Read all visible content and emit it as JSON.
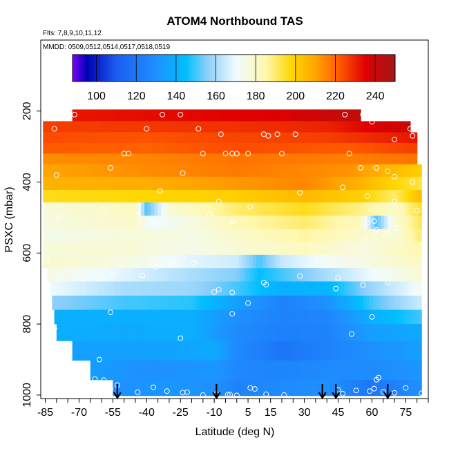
{
  "chart_data": {
    "type": "heatmap",
    "title": "ATOM4 Northbound TAS",
    "subtitle_flights": "Flts: 7,8,9,10,11,12",
    "subtitle_dates": "MMDD: 0509,0512,0514,0517,0518,0519",
    "xlabel": "Latitude (deg N)",
    "ylabel": "PSXC (mbar)",
    "xlim": [
      -87,
      85
    ],
    "ylim": [
      1010,
      0
    ],
    "x_tick_labels": [
      "-85",
      "-70",
      "-55",
      "-40",
      "-25",
      "-10",
      "5",
      "15",
      "30",
      "45",
      "60",
      "75"
    ],
    "x_tick_values": [
      -85,
      -70,
      -55,
      -40,
      -25,
      -10,
      5,
      15,
      30,
      45,
      60,
      75
    ],
    "y_tick_labels": [
      "200",
      "400",
      "600",
      "800",
      "1000"
    ],
    "y_tick_values": [
      200,
      400,
      600,
      800,
      1000
    ],
    "colorbar": {
      "range": [
        88,
        250
      ],
      "tick_labels": [
        "100",
        "120",
        "140",
        "160",
        "180",
        "200",
        "220",
        "240"
      ],
      "tick_values": [
        100,
        120,
        140,
        160,
        180,
        200,
        220,
        240
      ],
      "colors": [
        "#7f00ff",
        "#0000b3",
        "#1c5cf0",
        "#1e90ff",
        "#00bfff",
        "#87cefa",
        "#f0fbff",
        "#fff8b0",
        "#ffd700",
        "#ffa500",
        "#ff5a00",
        "#e00000",
        "#a01818"
      ],
      "color_stops": [
        88,
        95,
        110,
        130,
        145,
        155,
        170,
        185,
        198,
        210,
        222,
        235,
        250
      ]
    },
    "layers": [
      {
        "p": 212,
        "lat_min": -73,
        "lat_max": 55,
        "v": [
          [
            -73,
            232
          ],
          [
            -20,
            234
          ],
          [
            20,
            236
          ],
          [
            55,
            243
          ]
        ]
      },
      {
        "p": 245,
        "lat_min": -86,
        "lat_max": 77,
        "v": [
          [
            -86,
            226
          ],
          [
            -40,
            227
          ],
          [
            0,
            228
          ],
          [
            40,
            230
          ],
          [
            77,
            240
          ]
        ]
      },
      {
        "p": 275,
        "lat_min": -86,
        "lat_max": 80,
        "v": [
          [
            -86,
            224
          ],
          [
            -40,
            223
          ],
          [
            0,
            225
          ],
          [
            40,
            226
          ],
          [
            80,
            232
          ]
        ]
      },
      {
        "p": 305,
        "lat_min": -86,
        "lat_max": 80,
        "v": [
          [
            -86,
            222
          ],
          [
            -40,
            221
          ],
          [
            0,
            224
          ],
          [
            50,
            222
          ],
          [
            80,
            226
          ]
        ]
      },
      {
        "p": 335,
        "lat_min": -86,
        "lat_max": 80,
        "v": [
          [
            -86,
            214
          ],
          [
            -40,
            215
          ],
          [
            0,
            218
          ],
          [
            50,
            216
          ],
          [
            80,
            218
          ]
        ]
      },
      {
        "p": 365,
        "lat_min": -86,
        "lat_max": 82,
        "v": [
          [
            -86,
            210
          ],
          [
            -40,
            214
          ],
          [
            0,
            217
          ],
          [
            50,
            213
          ],
          [
            70,
            205
          ],
          [
            82,
            200
          ]
        ]
      },
      {
        "p": 405,
        "lat_min": -86,
        "lat_max": 82,
        "v": [
          [
            -86,
            207
          ],
          [
            -40,
            208
          ],
          [
            0,
            212
          ],
          [
            30,
            215
          ],
          [
            55,
            207
          ],
          [
            70,
            198
          ],
          [
            82,
            193
          ]
        ]
      },
      {
        "p": 440,
        "lat_min": -86,
        "lat_max": 82,
        "v": [
          [
            -86,
            196
          ],
          [
            -40,
            198
          ],
          [
            0,
            200
          ],
          [
            30,
            205
          ],
          [
            55,
            200
          ],
          [
            70,
            190
          ],
          [
            82,
            205
          ]
        ]
      },
      {
        "p": 475,
        "lat_min": -86,
        "lat_max": 82,
        "v": [
          [
            -86,
            177
          ],
          [
            -45,
            182
          ],
          [
            -40,
            150
          ],
          [
            -30,
            178
          ],
          [
            0,
            190
          ],
          [
            30,
            196
          ],
          [
            55,
            188
          ],
          [
            70,
            180
          ],
          [
            82,
            196
          ]
        ]
      },
      {
        "p": 515,
        "lat_min": -86,
        "lat_max": 82,
        "v": [
          [
            -86,
            176
          ],
          [
            -45,
            180
          ],
          [
            -38,
            170
          ],
          [
            -20,
            176
          ],
          [
            0,
            184
          ],
          [
            30,
            190
          ],
          [
            55,
            182
          ],
          [
            62,
            150
          ],
          [
            70,
            178
          ],
          [
            82,
            192
          ]
        ]
      },
      {
        "p": 550,
        "lat_min": -86,
        "lat_max": 82,
        "v": [
          [
            -86,
            174
          ],
          [
            -45,
            177
          ],
          [
            -20,
            175
          ],
          [
            0,
            180
          ],
          [
            30,
            186
          ],
          [
            55,
            180
          ],
          [
            70,
            177
          ],
          [
            82,
            190
          ]
        ]
      },
      {
        "p": 585,
        "lat_min": -86,
        "lat_max": 82,
        "v": [
          [
            -86,
            177
          ],
          [
            -50,
            178
          ],
          [
            -20,
            174
          ],
          [
            0,
            178
          ],
          [
            30,
            182
          ],
          [
            55,
            176
          ],
          [
            70,
            180
          ],
          [
            82,
            185
          ]
        ]
      },
      {
        "p": 625,
        "lat_min": -86,
        "lat_max": 82,
        "v": [
          [
            -86,
            179
          ],
          [
            -50,
            176
          ],
          [
            -20,
            168
          ],
          [
            0,
            165
          ],
          [
            10,
            150
          ],
          [
            20,
            164
          ],
          [
            40,
            172
          ],
          [
            60,
            176
          ],
          [
            82,
            182
          ]
        ]
      },
      {
        "p": 660,
        "lat_min": -84,
        "lat_max": 82,
        "v": [
          [
            -84,
            175
          ],
          [
            -50,
            168
          ],
          [
            -20,
            160
          ],
          [
            0,
            155
          ],
          [
            10,
            145
          ],
          [
            20,
            150
          ],
          [
            40,
            160
          ],
          [
            60,
            170
          ],
          [
            82,
            178
          ]
        ]
      },
      {
        "p": 700,
        "lat_min": -83,
        "lat_max": 82,
        "v": [
          [
            -83,
            170
          ],
          [
            -50,
            160
          ],
          [
            -20,
            158
          ],
          [
            0,
            150
          ],
          [
            20,
            140
          ],
          [
            40,
            142
          ],
          [
            60,
            158
          ],
          [
            82,
            172
          ]
        ]
      },
      {
        "p": 740,
        "lat_min": -82,
        "lat_max": 82,
        "v": [
          [
            -82,
            156
          ],
          [
            -50,
            150
          ],
          [
            -20,
            148
          ],
          [
            0,
            135
          ],
          [
            20,
            125
          ],
          [
            40,
            130
          ],
          [
            60,
            150
          ],
          [
            82,
            165
          ]
        ]
      },
      {
        "p": 780,
        "lat_min": -81,
        "lat_max": 82,
        "v": [
          [
            -81,
            140
          ],
          [
            -50,
            140
          ],
          [
            -20,
            140
          ],
          [
            0,
            130
          ],
          [
            20,
            125
          ],
          [
            40,
            126
          ],
          [
            60,
            140
          ],
          [
            82,
            150
          ]
        ]
      },
      {
        "p": 820,
        "lat_min": -80,
        "lat_max": 82,
        "v": [
          [
            -80,
            140
          ],
          [
            -50,
            138
          ],
          [
            -20,
            140
          ],
          [
            0,
            128
          ],
          [
            20,
            124
          ],
          [
            40,
            125
          ],
          [
            60,
            135
          ],
          [
            82,
            138
          ]
        ]
      },
      {
        "p": 875,
        "lat_min": -73,
        "lat_max": 82,
        "v": [
          [
            -73,
            135
          ],
          [
            -40,
            135
          ],
          [
            -10,
            138
          ],
          [
            0,
            128
          ],
          [
            20,
            120
          ],
          [
            40,
            125
          ],
          [
            60,
            130
          ],
          [
            82,
            135
          ]
        ]
      },
      {
        "p": 930,
        "lat_min": -65,
        "lat_max": 82,
        "v": [
          [
            -65,
            134
          ],
          [
            -40,
            130
          ],
          [
            -10,
            132
          ],
          [
            0,
            127
          ],
          [
            20,
            126
          ],
          [
            40,
            128
          ],
          [
            60,
            128
          ],
          [
            82,
            132
          ]
        ]
      },
      {
        "p": 985,
        "lat_min": -55,
        "lat_max": 82,
        "v": [
          [
            -55,
            130
          ],
          [
            -30,
            132
          ],
          [
            -10,
            130
          ],
          [
            0,
            125
          ],
          [
            20,
            128
          ],
          [
            40,
            130
          ],
          [
            60,
            120
          ],
          [
            82,
            130
          ]
        ]
      }
    ],
    "arrow_latitudes": [
      -53,
      -9,
      38,
      44,
      67
    ],
    "sample_points": [
      [
        -86,
        215
      ],
      [
        -81,
        250
      ],
      [
        -72,
        210
      ],
      [
        -33,
        210
      ],
      [
        -40,
        250
      ],
      [
        -25,
        210
      ],
      [
        -17,
        250
      ],
      [
        -7,
        265
      ],
      [
        -15,
        320
      ],
      [
        -50,
        320
      ],
      [
        -48,
        320
      ],
      [
        -5,
        320
      ],
      [
        -2,
        320
      ],
      [
        0,
        320
      ],
      [
        5,
        320
      ],
      [
        12,
        265
      ],
      [
        14,
        270
      ],
      [
        18,
        265
      ],
      [
        20,
        320
      ],
      [
        26,
        265
      ],
      [
        48,
        210
      ],
      [
        56,
        210
      ],
      [
        60,
        230
      ],
      [
        71,
        210
      ],
      [
        77,
        250
      ],
      [
        78,
        270
      ],
      [
        70,
        280
      ],
      [
        50,
        320
      ],
      [
        55,
        360
      ],
      [
        62,
        360
      ],
      [
        67,
        370
      ],
      [
        70,
        385
      ],
      [
        78,
        400
      ],
      [
        -80,
        380
      ],
      [
        -56,
        360
      ],
      [
        -24,
        375
      ],
      [
        -34,
        425
      ],
      [
        6,
        470
      ],
      [
        -8,
        455
      ],
      [
        28,
        430
      ],
      [
        47,
        415
      ],
      [
        58,
        440
      ],
      [
        70,
        455
      ],
      [
        80,
        480
      ],
      [
        -44,
        495
      ],
      [
        -37,
        510
      ],
      [
        -12,
        490
      ],
      [
        -2,
        510
      ],
      [
        -59,
        475
      ],
      [
        -79,
        500
      ],
      [
        -84,
        618
      ],
      [
        61,
        510
      ],
      [
        58,
        515
      ],
      [
        71,
        530
      ],
      [
        62,
        535
      ],
      [
        67,
        545
      ],
      [
        57,
        560
      ],
      [
        62,
        565
      ],
      [
        -29,
        630
      ],
      [
        -36,
        640
      ],
      [
        -42,
        663
      ],
      [
        -8,
        703
      ],
      [
        -2,
        711
      ],
      [
        -19,
        628
      ],
      [
        13,
        689
      ],
      [
        12,
        683
      ],
      [
        28,
        665
      ],
      [
        44,
        700
      ],
      [
        45,
        670
      ],
      [
        56,
        690
      ],
      [
        67,
        683
      ],
      [
        -55,
        660
      ],
      [
        -79,
        664
      ],
      [
        -81,
        813
      ],
      [
        -56,
        767
      ],
      [
        -25,
        840
      ],
      [
        -10,
        710
      ],
      [
        -2,
        771
      ],
      [
        5,
        741
      ],
      [
        60,
        780
      ],
      [
        51,
        828
      ],
      [
        -61,
        900
      ],
      [
        -63,
        955
      ],
      [
        -59,
        958
      ],
      [
        -56,
        982
      ],
      [
        -53,
        972
      ],
      [
        -44,
        992
      ],
      [
        -37,
        978
      ],
      [
        -31,
        989
      ],
      [
        -24,
        993
      ],
      [
        -22,
        992
      ],
      [
        -15,
        1000
      ],
      [
        -9,
        997
      ],
      [
        -4,
        999
      ],
      [
        -3,
        999
      ],
      [
        0,
        1001
      ],
      [
        6,
        980
      ],
      [
        8,
        983
      ],
      [
        13,
        998
      ],
      [
        21,
        1000
      ],
      [
        45,
        985
      ],
      [
        47,
        996
      ],
      [
        53,
        987
      ],
      [
        59,
        989
      ],
      [
        61,
        982
      ],
      [
        62,
        957
      ],
      [
        63,
        951
      ],
      [
        65,
        991
      ],
      [
        70,
        994
      ],
      [
        75,
        980
      ],
      [
        82,
        995
      ]
    ]
  }
}
